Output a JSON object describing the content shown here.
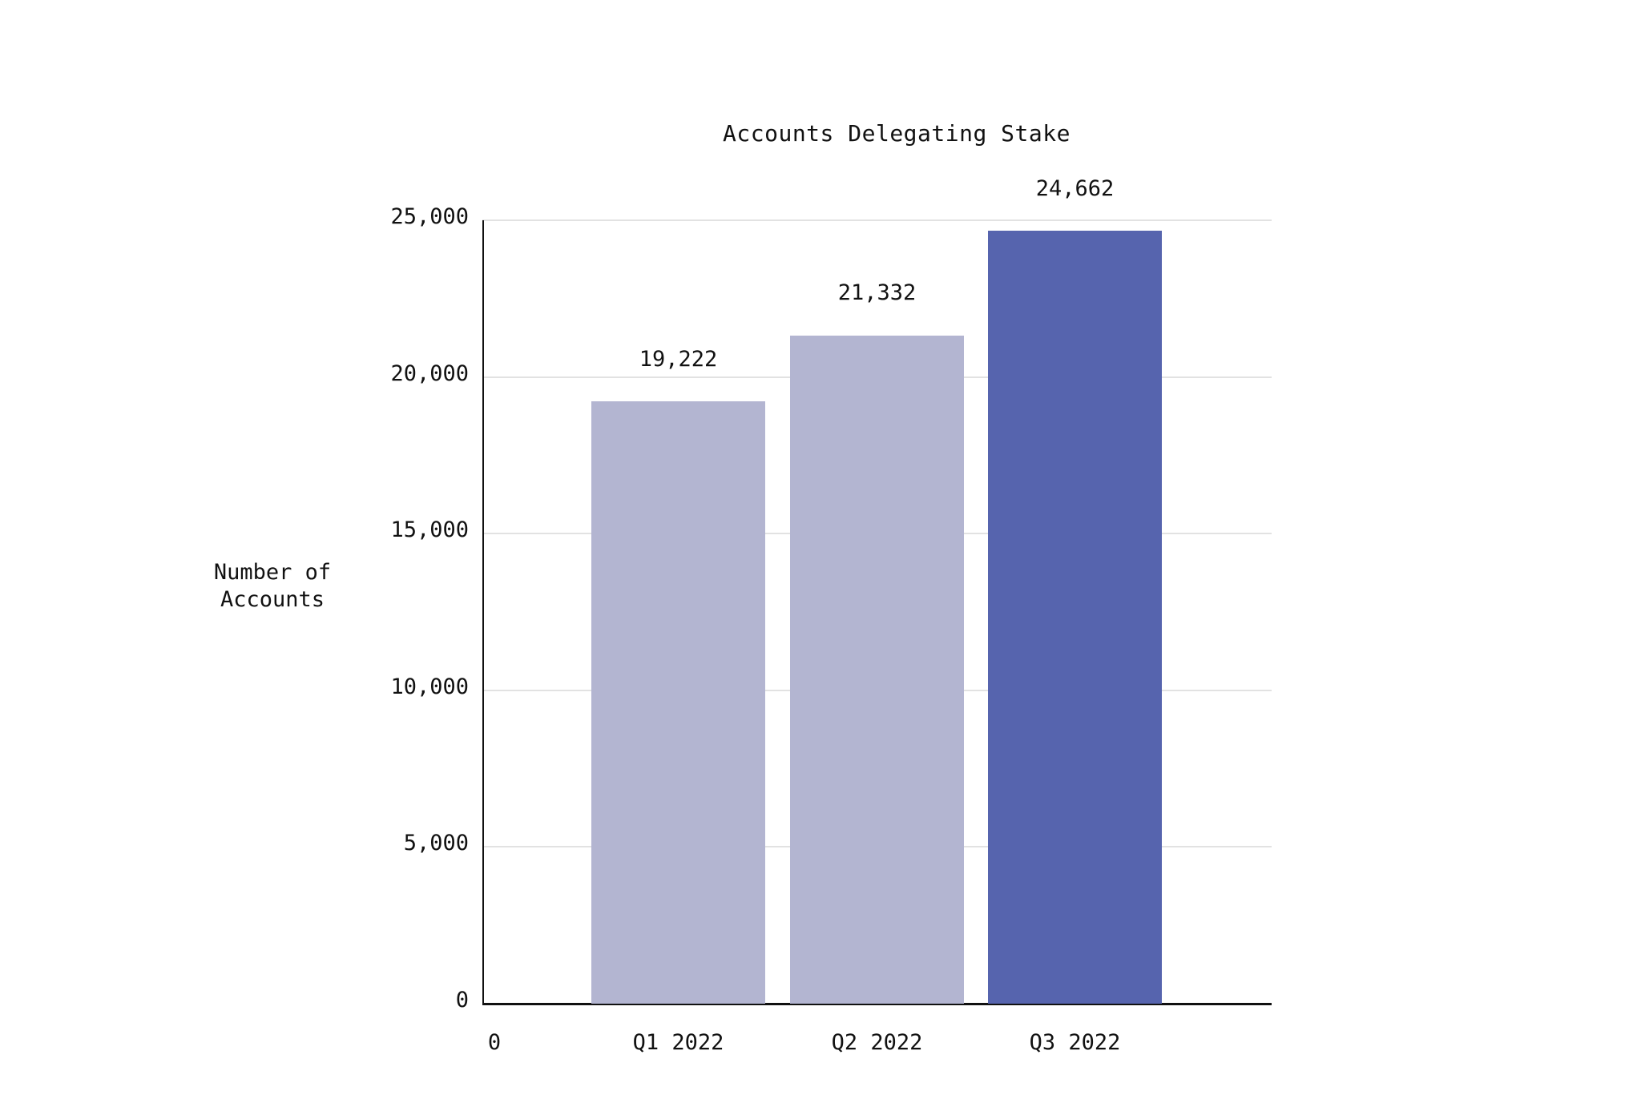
{
  "chart_data": {
    "type": "bar",
    "title": "Accounts Delegating Stake",
    "xlabel": "",
    "ylabel": "Number of Accounts",
    "ylabel_lines": [
      "Number of",
      "Accounts"
    ],
    "categories": [
      "Q1 2022",
      "Q2 2022",
      "Q3 2022"
    ],
    "values": [
      19222,
      21332,
      24662
    ],
    "value_labels": [
      "19,222",
      "21,332",
      "24,662"
    ],
    "bar_colors": [
      "#b3b5d1",
      "#b3b5d1",
      "#5664ae"
    ],
    "ylim": [
      0,
      25000
    ],
    "yticks": [
      0,
      5000,
      10000,
      15000,
      20000,
      25000
    ],
    "ytick_labels": [
      "0",
      "5,000",
      "10,000",
      "15,000",
      "20,000",
      "25,000"
    ],
    "x_origin_label": "0",
    "grid": true,
    "legend": null
  }
}
